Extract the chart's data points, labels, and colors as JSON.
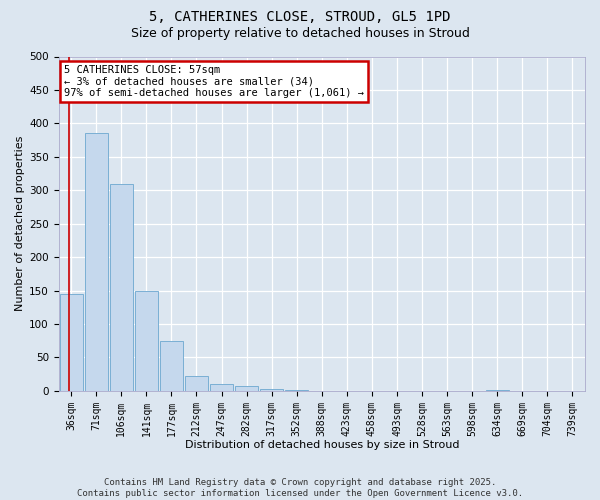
{
  "title1": "5, CATHERINES CLOSE, STROUD, GL5 1PD",
  "title2": "Size of property relative to detached houses in Stroud",
  "xlabel": "Distribution of detached houses by size in Stroud",
  "ylabel": "Number of detached properties",
  "categories": [
    "36sqm",
    "71sqm",
    "106sqm",
    "141sqm",
    "177sqm",
    "212sqm",
    "247sqm",
    "282sqm",
    "317sqm",
    "352sqm",
    "388sqm",
    "423sqm",
    "458sqm",
    "493sqm",
    "528sqm",
    "563sqm",
    "598sqm",
    "634sqm",
    "669sqm",
    "704sqm",
    "739sqm"
  ],
  "values": [
    145,
    385,
    310,
    150,
    75,
    22,
    10,
    7,
    3,
    1,
    0,
    0,
    0,
    0,
    0,
    0,
    0,
    1,
    0,
    0,
    0
  ],
  "bar_color": "#c5d8ed",
  "bar_edge_color": "#7aafd4",
  "annotation_text": "5 CATHERINES CLOSE: 57sqm\n← 3% of detached houses are smaller (34)\n97% of semi-detached houses are larger (1,061) →",
  "annotation_box_color": "#ffffff",
  "annotation_box_edge_color": "#cc0000",
  "vline_color": "#cc0000",
  "vline_x": -0.08,
  "ylim": [
    0,
    500
  ],
  "yticks": [
    0,
    50,
    100,
    150,
    200,
    250,
    300,
    350,
    400,
    450,
    500
  ],
  "bg_color": "#dce6f0",
  "plot_bg_color": "#dce6f0",
  "footer": "Contains HM Land Registry data © Crown copyright and database right 2025.\nContains public sector information licensed under the Open Government Licence v3.0.",
  "title_fontsize": 10,
  "subtitle_fontsize": 9,
  "axis_label_fontsize": 8,
  "tick_fontsize": 7,
  "footer_fontsize": 6.5,
  "annotation_fontsize": 7.5
}
